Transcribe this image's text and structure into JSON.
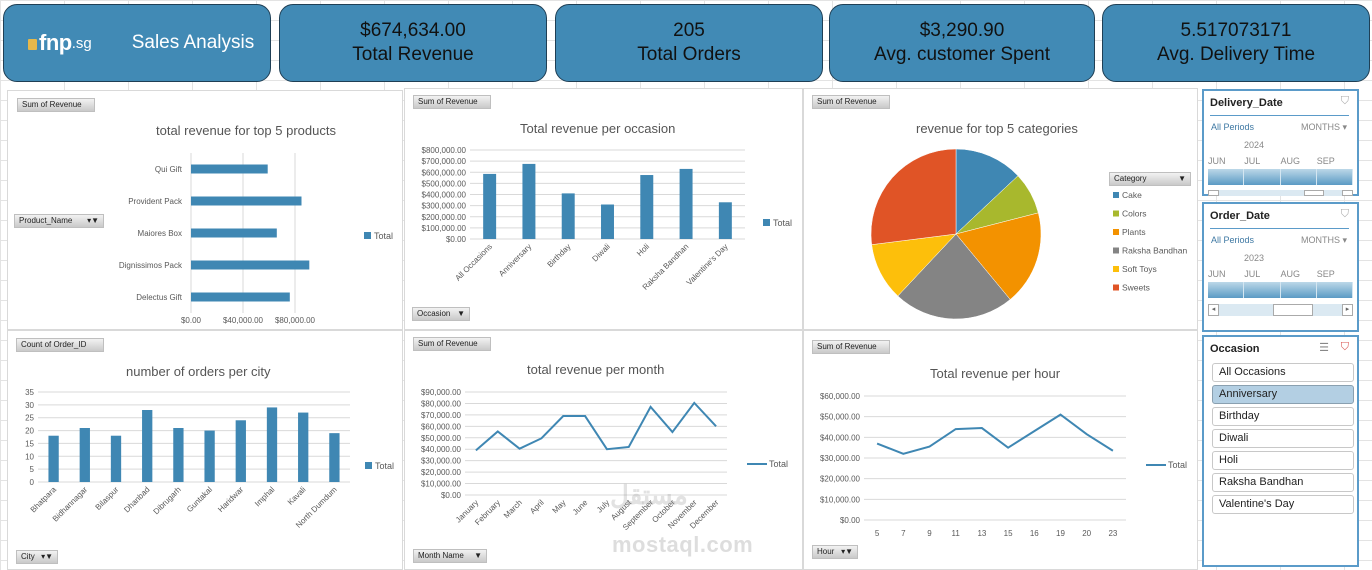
{
  "header": {
    "logo_text": "fnp",
    "logo_suffix": ".sg",
    "title": "Sales Analysis"
  },
  "kpis": [
    {
      "value": "$674,634.00",
      "label": "Total Revenue"
    },
    {
      "value": "205",
      "label": "Total Orders"
    },
    {
      "value": "$3,290.90",
      "label": "Avg. customer Spent"
    },
    {
      "value": "5.517073171",
      "label": "Avg. Delivery Time"
    }
  ],
  "colors": {
    "accent": "#418ab5",
    "series": "#3f87b3",
    "pie": [
      "#3f87b3",
      "#a8b82d",
      "#f39200",
      "#848484",
      "#fdbf0b",
      "#e05426"
    ]
  },
  "pivot_fields": {
    "sum_revenue": "Sum of Revenue",
    "count_order": "Count of Order_ID",
    "product_name": "Product_Name",
    "occasion": "Occasion",
    "category": "Category",
    "city": "City",
    "month_name": "Month Name",
    "hour": "Hour"
  },
  "chart_data": [
    {
      "id": "products",
      "type": "bar",
      "orientation": "horizontal",
      "title": "total revenue for top 5 products",
      "categories": [
        "Qui Gift",
        "Provident Pack",
        "Maiores Box",
        "Dignissimos Pack",
        "Delectus Gift"
      ],
      "values": [
        59000,
        85000,
        66000,
        91000,
        76000
      ],
      "xlim": [
        0,
        120000
      ],
      "ticks": [
        "$0.00",
        "$40,000.00",
        "$80,000.00"
      ],
      "legend": "Total",
      "legend_position": "right",
      "grid": true
    },
    {
      "id": "occasion",
      "type": "bar",
      "title": "Total revenue per occasion",
      "categories": [
        "All Occasions",
        "Anniversary",
        "Birthday",
        "Diwali",
        "Holi",
        "Raksha Bandhan",
        "Valentine's Day"
      ],
      "values": [
        585000,
        675000,
        410000,
        310000,
        575000,
        630000,
        330000
      ],
      "ylim": [
        0,
        800000
      ],
      "ticks": [
        "$0.00",
        "$100,000.00",
        "$200,000.00",
        "$300,000.00",
        "$400,000.00",
        "$500,000.00",
        "$600,000.00",
        "$700,000.00",
        "$800,000.00"
      ],
      "legend": "Total",
      "legend_position": "right",
      "grid": true
    },
    {
      "id": "categories",
      "type": "pie",
      "title": "revenue for top 5 categories",
      "categories": [
        "Cake",
        "Colors",
        "Plants",
        "Raksha Bandhan",
        "Soft Toys",
        "Sweets"
      ],
      "values": [
        13,
        8,
        18,
        23,
        11,
        27
      ],
      "legend_position": "right"
    },
    {
      "id": "city",
      "type": "bar",
      "title": "number of orders per city",
      "categories": [
        "Bhatpara",
        "Bidhannagar",
        "Bilaspur",
        "Dhanbad",
        "Dibrugarh",
        "Guntakal",
        "Haridwar",
        "Imphal",
        "Kavali",
        "North Dumdum"
      ],
      "values": [
        18,
        21,
        18,
        28,
        21,
        20,
        24,
        29,
        27,
        19
      ],
      "ylim": [
        0,
        35
      ],
      "ticks": [
        "0",
        "5",
        "10",
        "15",
        "20",
        "25",
        "30",
        "35"
      ],
      "legend": "Total",
      "legend_position": "right",
      "grid": true
    },
    {
      "id": "month",
      "type": "line",
      "title": "total revenue per month",
      "categories": [
        "January",
        "February",
        "March",
        "April",
        "May",
        "June",
        "July",
        "August",
        "September",
        "October",
        "November",
        "December"
      ],
      "values": [
        39000,
        55500,
        40500,
        49500,
        69000,
        69000,
        40000,
        42000,
        77000,
        55000,
        80500,
        60000
      ],
      "ylim": [
        0,
        90000
      ],
      "ticks": [
        "$0.00",
        "$10,000.00",
        "$20,000.00",
        "$30,000.00",
        "$40,000.00",
        "$50,000.00",
        "$60,000.00",
        "$70,000.00",
        "$80,000.00",
        "$90,000.00"
      ],
      "legend": "Total",
      "legend_position": "right",
      "grid": true
    },
    {
      "id": "hour",
      "type": "line",
      "title": "Total revenue per hour",
      "categories": [
        "5",
        "7",
        "9",
        "11",
        "13",
        "15",
        "16",
        "19",
        "20",
        "23"
      ],
      "values": [
        37000,
        32000,
        35500,
        44000,
        44500,
        35000,
        43000,
        51000,
        41500,
        33500
      ],
      "ylim": [
        0,
        60000
      ],
      "ticks": [
        "$0.00",
        "$10,000.00",
        "$20,000.00",
        "$30,000.00",
        "$40,000.00",
        "$50,000.00",
        "$60,000.00"
      ],
      "legend": "Total",
      "legend_position": "right",
      "grid": true
    }
  ],
  "slicers": {
    "delivery": {
      "title": "Delivery_Date",
      "all_periods": "All Periods",
      "level": "MONTHS",
      "year": "2024",
      "months": [
        "JUN",
        "JUL",
        "AUG",
        "SEP"
      ]
    },
    "order": {
      "title": "Order_Date",
      "all_periods": "All Periods",
      "level": "MONTHS",
      "year": "2023",
      "months": [
        "JUN",
        "JUL",
        "AUG",
        "SEP"
      ]
    },
    "occasion": {
      "title": "Occasion",
      "items": [
        "All Occasions",
        "Anniversary",
        "Birthday",
        "Diwali",
        "Holi",
        "Raksha Bandhan",
        "Valentine's Day"
      ],
      "selected": "Anniversary"
    }
  },
  "watermark": {
    "arabic": "مستقل",
    "latin": "mostaql.com"
  }
}
